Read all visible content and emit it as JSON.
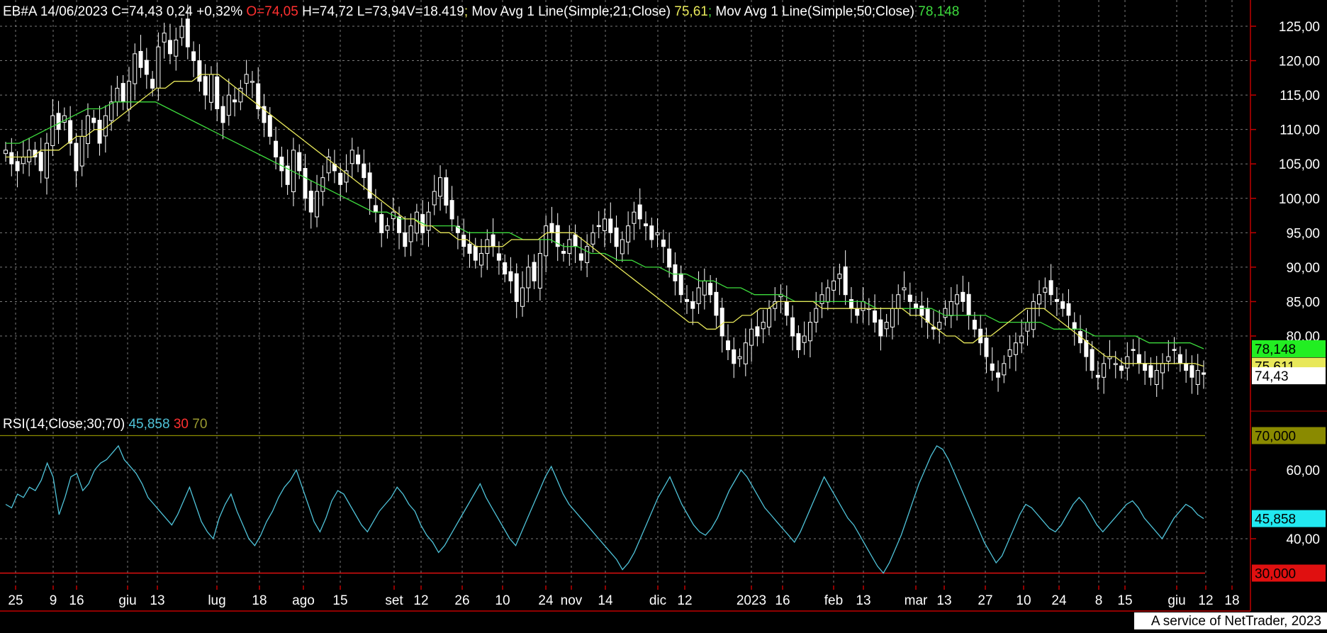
{
  "symbol": "EB#A",
  "date": "14/06/2023",
  "ohlc": {
    "close_label": "C=74,43",
    "change": "0,24",
    "change_pct": "+0,32%",
    "open_label": "O=74,05",
    "high_label": "H=74,72",
    "low_label": "L=73,94",
    "volume_label": "V=18.419"
  },
  "ma21": {
    "label": "Mov Avg 1 Line(Simple;21;Close)",
    "value": "75,61",
    "badge": "75,611",
    "color": "#e8e85a"
  },
  "ma50": {
    "label": "Mov Avg 1 Line(Simple;50;Close)",
    "value": "78,148",
    "badge": "78,148",
    "color": "#3ddc3d"
  },
  "last_price_badge": "74,43",
  "rsi": {
    "label": "RSI(14;Close;30;70)",
    "value": "45,858",
    "lower": "30",
    "upper": "70",
    "lower_badge": "30,000",
    "upper_badge": "70,000",
    "color": "#4fc3d9"
  },
  "footer": "A service of NetTrader, 2023",
  "colors": {
    "background": "#000000",
    "grid": "#7a7a7a",
    "axis": "#c00000",
    "candle": "#ffffff",
    "rsi_upper": "#8a8a00",
    "rsi_lower": "#e01010"
  },
  "chart_data": [
    {
      "type": "candlestick",
      "title": "EB#A",
      "yticks": [
        "125,00",
        "120,00",
        "115,00",
        "110,00",
        "105,00",
        "100,00",
        "95,00",
        "90,00",
        "85,00",
        "80,00"
      ],
      "ylim": [
        71,
        126
      ],
      "xticks": [
        "25",
        "9",
        "16",
        "giu",
        "13",
        "lug",
        "18",
        "ago",
        "15",
        "set",
        "12",
        "26",
        "10",
        "24",
        "nov",
        "14",
        "dic",
        "12",
        "2023",
        "16",
        "feb",
        "13",
        "mar",
        "13",
        "27",
        "10",
        "24",
        "8",
        "15",
        "giu",
        "12",
        "18"
      ],
      "grid": true,
      "close": [
        107,
        105,
        104,
        106,
        107,
        106,
        104,
        108,
        112,
        110,
        112,
        108,
        104,
        109,
        112,
        111,
        108,
        112,
        114,
        116,
        114,
        117,
        121,
        119,
        118,
        116,
        122,
        124,
        121,
        123,
        125,
        122,
        120,
        117,
        115,
        118,
        113,
        111,
        115,
        114,
        116,
        118,
        117,
        113,
        111,
        109,
        106,
        104,
        102,
        107,
        104,
        100,
        98,
        101,
        103,
        106,
        104,
        102,
        104,
        107,
        105,
        103,
        100,
        98,
        95,
        96,
        98,
        95,
        93,
        96,
        98,
        95,
        98,
        101,
        103,
        99,
        97,
        95,
        93,
        92,
        91,
        92,
        94,
        93,
        91,
        89,
        88,
        85,
        87,
        90,
        88,
        92,
        96,
        95,
        93,
        92,
        94,
        93,
        91,
        93,
        95,
        96,
        97,
        95,
        93,
        94,
        96,
        98,
        97,
        96,
        94,
        95,
        93,
        90,
        88,
        86,
        85,
        84,
        87,
        88,
        86,
        83,
        80,
        78,
        76,
        77,
        79,
        81,
        80,
        82,
        84,
        85,
        86,
        83,
        80,
        78,
        80,
        82,
        84,
        86,
        87,
        88,
        89,
        86,
        84,
        83,
        85,
        84,
        82,
        80,
        82,
        84,
        86,
        87,
        85,
        84,
        83,
        82,
        81,
        82,
        84,
        85,
        86,
        85,
        83,
        81,
        79,
        77,
        75,
        74,
        76,
        78,
        79,
        80,
        82,
        85,
        86,
        87,
        86,
        85,
        84,
        83,
        81,
        79,
        77,
        75,
        74,
        76,
        77,
        76,
        75,
        77,
        78,
        76,
        75,
        74,
        75,
        76,
        77,
        78,
        76,
        75,
        74,
        75,
        74.43
      ],
      "ma21": [
        106,
        106,
        106,
        106,
        107,
        107,
        107,
        108,
        109,
        109,
        110,
        110,
        111,
        112,
        113,
        114,
        115,
        116,
        116,
        117,
        117,
        117,
        118,
        118,
        118,
        117,
        116,
        115,
        114,
        113,
        112,
        111,
        110,
        109,
        108,
        107,
        106,
        105,
        104,
        103,
        102,
        101,
        100,
        99,
        98,
        97,
        97,
        96,
        96,
        95,
        95,
        94,
        94,
        93,
        93,
        93,
        93,
        94,
        94,
        94,
        94,
        95,
        95,
        95,
        95,
        94,
        93,
        92,
        91,
        90,
        89,
        88,
        87,
        86,
        85,
        84,
        83,
        82,
        82,
        81,
        81,
        82,
        82,
        83,
        83,
        84,
        84,
        85,
        85,
        85,
        85,
        85,
        84,
        84,
        84,
        84,
        84,
        84,
        84,
        84,
        84,
        84,
        83,
        83,
        82,
        81,
        80,
        80,
        79,
        79,
        80,
        80,
        81,
        82,
        83,
        84,
        84,
        84,
        83,
        82,
        81,
        80,
        79,
        78,
        77,
        77,
        76,
        76,
        76,
        76,
        76,
        76,
        76,
        76,
        76,
        75.61
      ],
      "ma50": [
        108,
        108,
        109,
        110,
        111,
        112,
        113,
        113,
        114,
        114,
        114,
        114,
        113,
        112,
        111,
        110,
        109,
        108,
        107,
        106,
        105,
        104,
        103,
        102,
        101,
        100,
        99,
        98,
        98,
        97,
        97,
        96,
        96,
        96,
        95,
        95,
        95,
        95,
        94,
        94,
        94,
        93,
        93,
        92,
        92,
        91,
        91,
        90,
        90,
        89,
        89,
        88,
        88,
        87,
        87,
        86,
        86,
        86,
        85,
        85,
        85,
        85,
        85,
        85,
        84,
        84,
        84,
        84,
        84,
        83,
        83,
        83,
        83,
        82,
        82,
        82,
        82,
        81,
        81,
        81,
        80,
        80,
        80,
        80,
        79,
        79,
        79,
        79,
        78.148
      ]
    },
    {
      "type": "line",
      "title": "RSI(14;Close;30;70)",
      "yticks": [
        "60,00",
        "40,00"
      ],
      "ylim": [
        28,
        74
      ],
      "levels": [
        30,
        70
      ],
      "values": [
        50,
        49,
        53,
        52,
        55,
        54,
        57,
        62,
        58,
        47,
        52,
        58,
        59,
        54,
        56,
        60,
        62,
        63,
        65,
        67,
        63,
        61,
        59,
        56,
        52,
        50,
        48,
        46,
        44,
        47,
        51,
        55,
        50,
        45,
        42,
        40,
        46,
        50,
        53,
        48,
        44,
        40,
        38,
        41,
        45,
        48,
        52,
        55,
        57,
        60,
        55,
        50,
        45,
        42,
        46,
        51,
        54,
        53,
        50,
        47,
        44,
        42,
        45,
        48,
        50,
        52,
        55,
        53,
        50,
        48,
        44,
        41,
        39,
        36,
        38,
        41,
        44,
        47,
        50,
        53,
        56,
        52,
        49,
        46,
        43,
        40,
        38,
        42,
        46,
        50,
        54,
        58,
        61,
        57,
        53,
        50,
        48,
        46,
        44,
        42,
        40,
        38,
        36,
        34,
        31,
        33,
        36,
        40,
        44,
        48,
        52,
        55,
        58,
        54,
        50,
        47,
        44,
        42,
        41,
        43,
        46,
        50,
        54,
        57,
        60,
        58,
        55,
        52,
        49,
        47,
        45,
        43,
        41,
        39,
        42,
        46,
        50,
        54,
        58,
        55,
        52,
        49,
        46,
        44,
        41,
        38,
        35,
        32,
        30,
        33,
        37,
        41,
        46,
        51,
        56,
        60,
        64,
        67,
        66,
        63,
        59,
        55,
        51,
        47,
        43,
        39,
        36,
        33,
        35,
        39,
        43,
        47,
        50,
        49,
        47,
        45,
        43,
        42,
        44,
        47,
        50,
        52,
        50,
        47,
        44,
        42,
        44,
        46,
        48,
        50,
        51,
        49,
        46,
        44,
        42,
        40,
        43,
        46,
        48,
        50,
        49,
        47,
        45.858
      ]
    }
  ]
}
